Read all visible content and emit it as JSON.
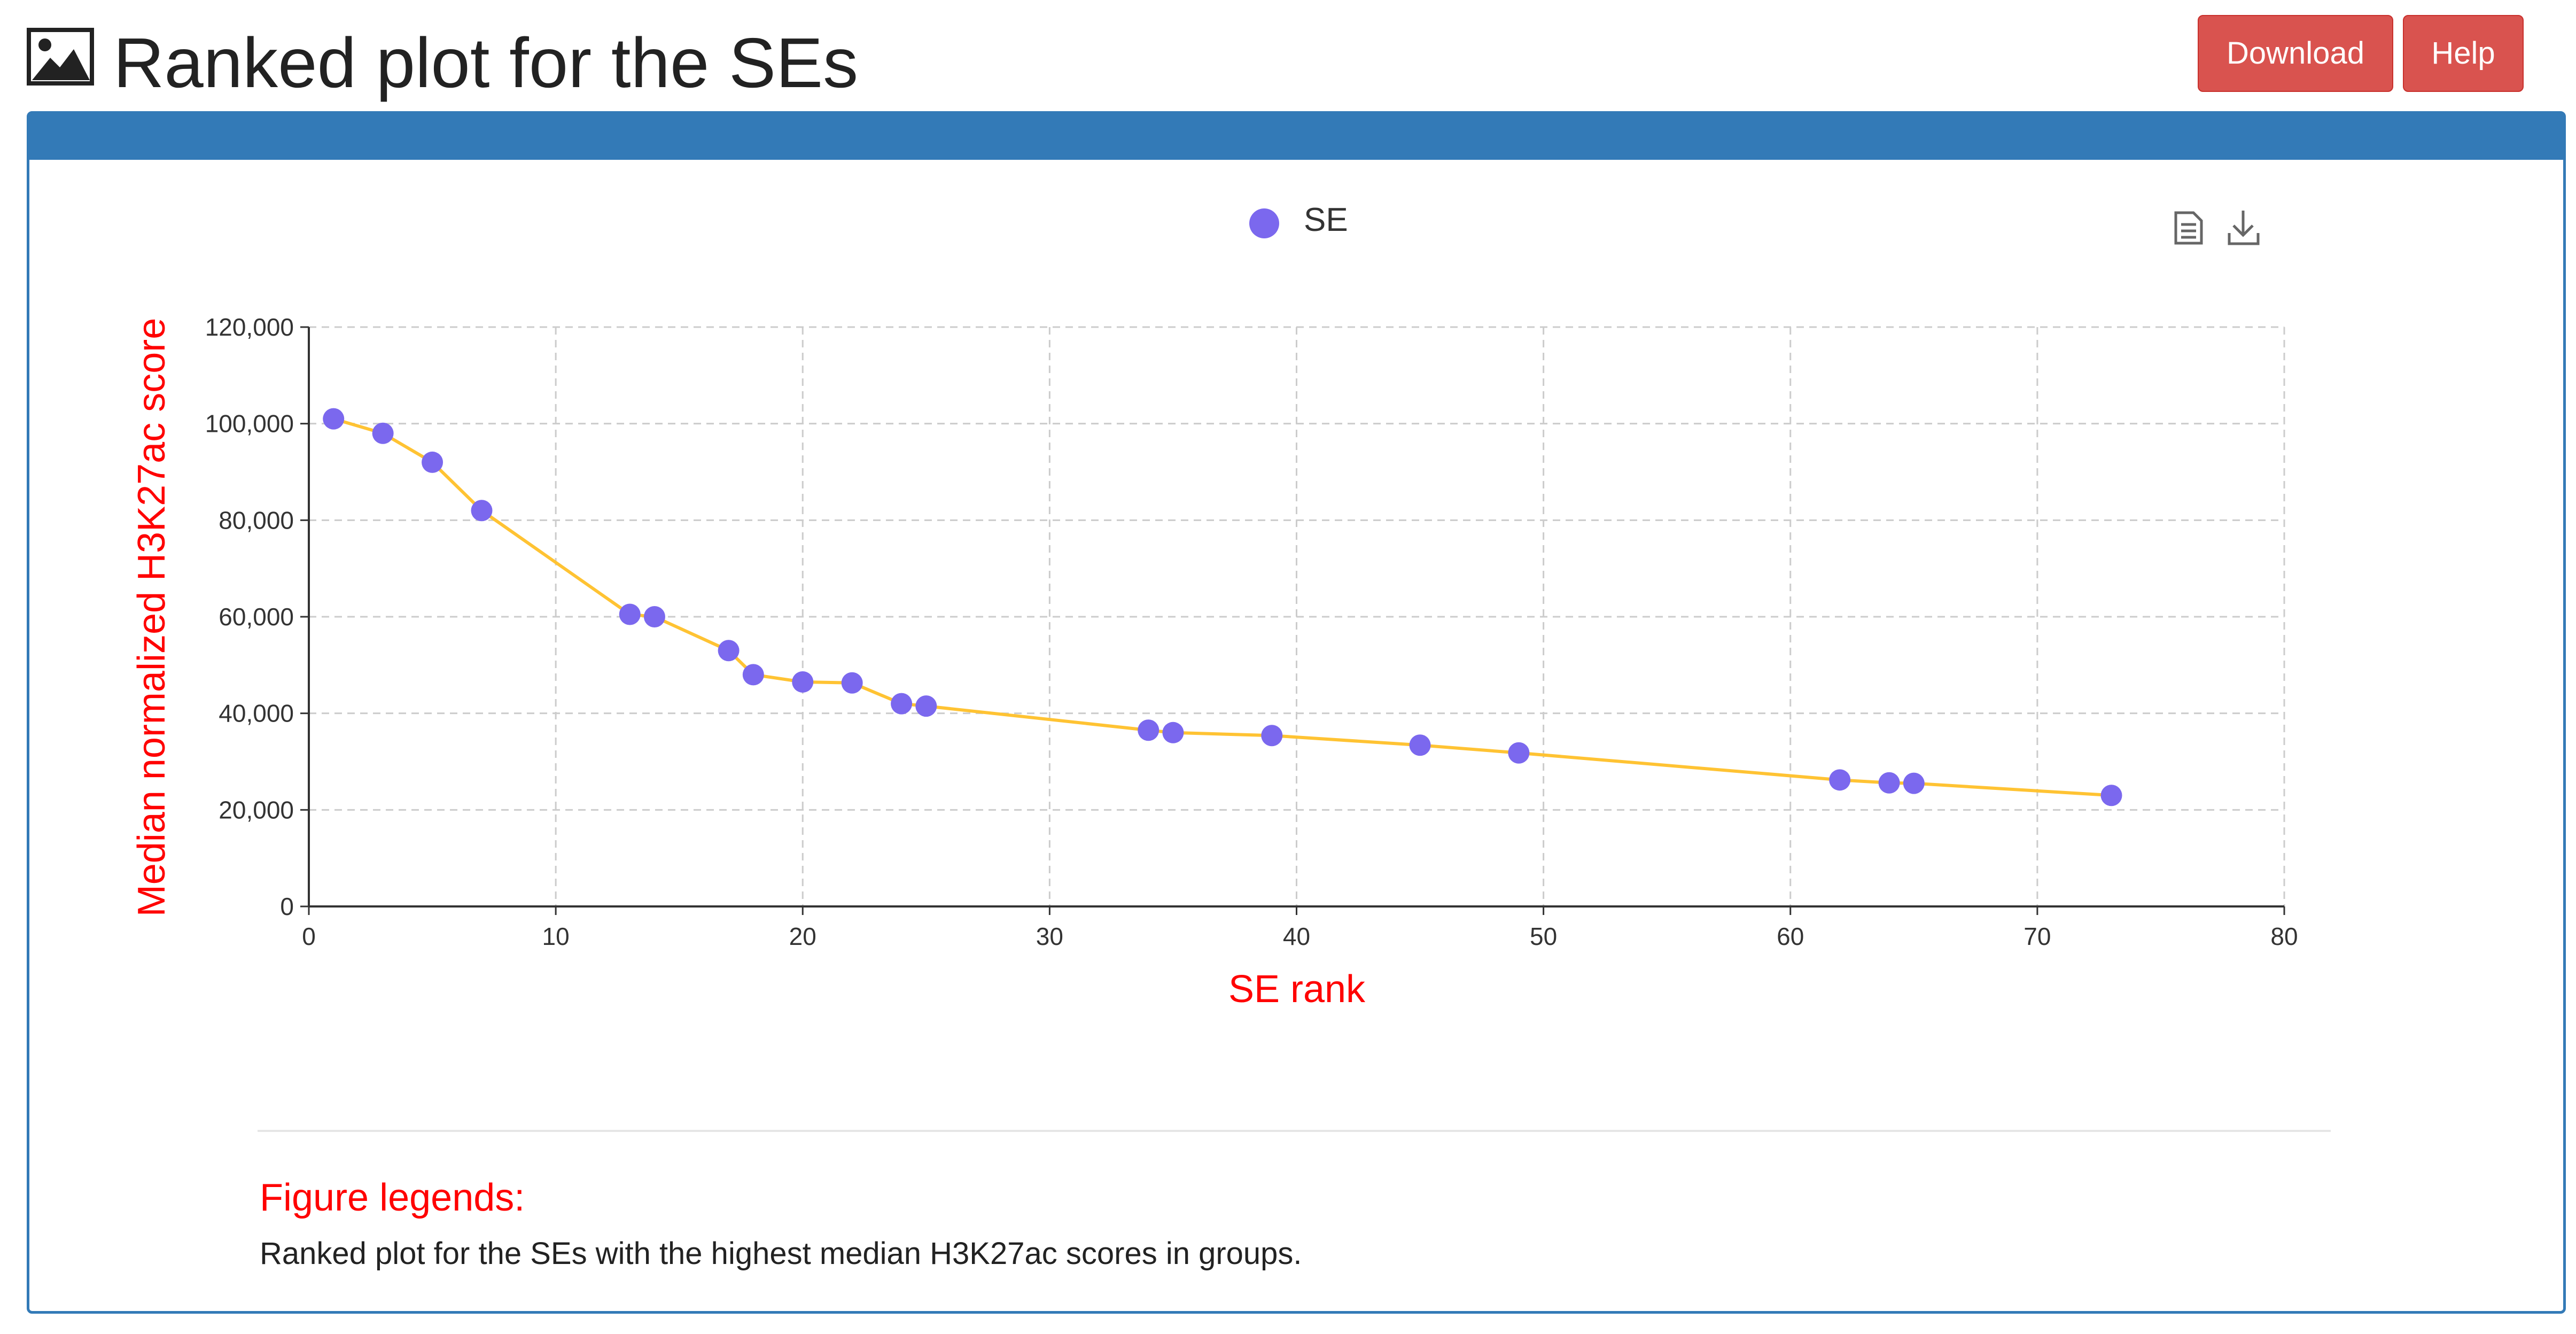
{
  "header": {
    "title": "Ranked plot for the SEs",
    "title_icon": "image-icon",
    "download_label": "Download",
    "help_label": "Help"
  },
  "colors": {
    "accent": "#337ab7",
    "button": "#d9534f",
    "series_point": "#7b68ee",
    "series_line": "#ffc333",
    "axis_title": "#ff0000"
  },
  "toolbox": {
    "data_view_icon": "data-view-icon",
    "save_image_icon": "download-icon"
  },
  "chart_data": {
    "type": "scatter",
    "title": "",
    "legend": [
      "SE"
    ],
    "legend_position": "top-center",
    "xlabel": "SE rank",
    "ylabel": "Median normalized H3K27ac score",
    "xlim": [
      0,
      80
    ],
    "ylim": [
      0,
      120000
    ],
    "xticks": [
      0,
      10,
      20,
      30,
      40,
      50,
      60,
      70,
      80
    ],
    "yticks": [
      0,
      20000,
      40000,
      60000,
      80000,
      100000,
      120000
    ],
    "ytick_labels": [
      "0",
      "20,000",
      "40,000",
      "60,000",
      "80,000",
      "100,000",
      "120,000"
    ],
    "grid": true,
    "series": [
      {
        "name": "SE",
        "x": [
          1,
          3,
          5,
          7,
          13,
          14,
          17,
          18,
          20,
          22,
          24,
          25,
          34,
          35,
          39,
          45,
          49,
          62,
          64,
          65,
          73
        ],
        "y": [
          101000,
          98000,
          92000,
          82000,
          60500,
          60000,
          53000,
          48000,
          46500,
          46300,
          42000,
          41500,
          36500,
          36000,
          35400,
          33400,
          31800,
          26200,
          25600,
          25500,
          23000
        ]
      }
    ]
  },
  "figure_legends": {
    "title": "Figure legends:",
    "text": "Ranked plot for the SEs with the highest median H3K27ac scores in groups."
  }
}
